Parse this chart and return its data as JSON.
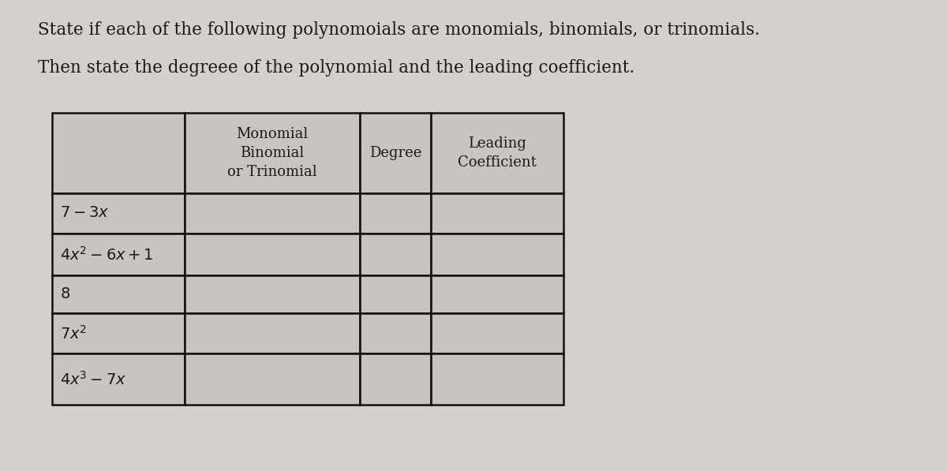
{
  "title_line1": "State if each of the following polynomoials are monomials, binomials, or trinomials.",
  "title_line2": "Then state the degreee of the polynomial and the leading coefficient.",
  "background_color": "#d4d0cc",
  "table_bg": "#c8c5c0",
  "header_texts": [
    "Monomial\nBinomial\nor Trinomial",
    "Degree",
    "Leading\nCoefficient"
  ],
  "row_labels": [
    "$7-3x$",
    "$4x^2-6x+1$",
    "$8$",
    "$7x^2$",
    "$4x^3-7x$"
  ],
  "title_fontsize": 15.5,
  "table_fontsize": 13,
  "label_fontsize": 14,
  "title_color": "#1a1818",
  "text_color": "#1a1818",
  "border_color": "#111111",
  "col_bounds": [
    0.055,
    0.195,
    0.38,
    0.455,
    0.595
  ],
  "row_tops": [
    0.76,
    0.59,
    0.505,
    0.415,
    0.335,
    0.25
  ],
  "row_bottoms": [
    0.59,
    0.505,
    0.415,
    0.335,
    0.25,
    0.14
  ]
}
